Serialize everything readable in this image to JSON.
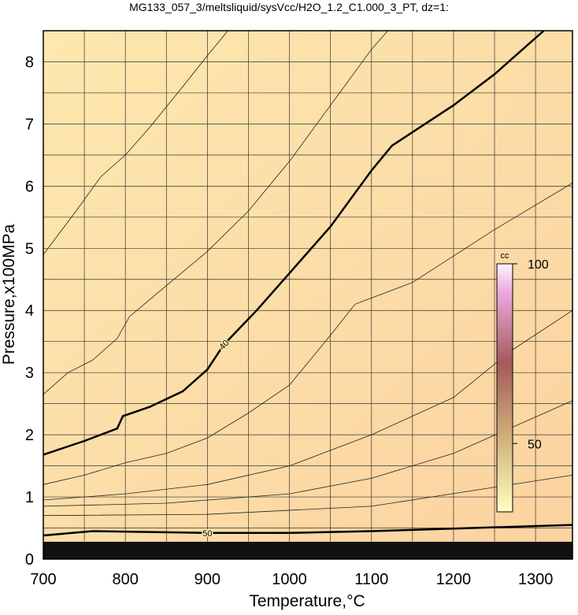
{
  "chart_data": {
    "type": "contour",
    "title": "MG133_057_3/meltsliquid/sysVcc/H2O_1.2_C1.000_3_PT, dz=1:",
    "xlabel": "Temperature,°C",
    "ylabel": "Pressure,x100MPa",
    "xlim": [
      700,
      1345
    ],
    "ylim": [
      0,
      8.5
    ],
    "xticks": [
      700,
      800,
      900,
      1000,
      1100,
      1200,
      1300
    ],
    "yticks": [
      0,
      1,
      2,
      3,
      4,
      5,
      6,
      7,
      8
    ],
    "xminorticks": [
      750,
      850,
      950,
      1050,
      1150,
      1250
    ],
    "yminorticks": [
      0.5,
      1.5,
      2.5,
      3.5,
      4.5,
      5.5,
      6.5,
      7.5
    ],
    "grid": true,
    "contours": [
      {
        "level": 40,
        "bold": true,
        "x": [
          700,
          750,
          790,
          797,
          830,
          870,
          900,
          920,
          960,
          1000,
          1050,
          1100,
          1125,
          1200,
          1250,
          1310
        ],
        "y": [
          1.68,
          1.9,
          2.1,
          2.3,
          2.45,
          2.7,
          3.05,
          3.45,
          4.0,
          4.6,
          5.35,
          6.25,
          6.65,
          7.3,
          7.8,
          8.5
        ]
      },
      {
        "level": 50,
        "bold": true,
        "x": [
          700,
          760,
          900,
          1000,
          1100,
          1345
        ],
        "y": [
          0.38,
          0.45,
          0.42,
          0.42,
          0.45,
          0.55
        ]
      }
    ],
    "lines": [
      {
        "x": [
          700,
          740,
          770,
          800,
          830,
          870,
          900,
          925
        ],
        "y": [
          4.9,
          5.6,
          6.15,
          6.5,
          6.95,
          7.6,
          8.1,
          8.5
        ]
      },
      {
        "x": [
          700,
          730,
          760,
          790,
          805,
          850,
          900,
          950,
          1000,
          1050,
          1100,
          1120
        ],
        "y": [
          2.65,
          3.0,
          3.2,
          3.55,
          3.9,
          4.4,
          4.95,
          5.6,
          6.4,
          7.3,
          8.2,
          8.5
        ]
      },
      {
        "x": [
          700,
          750,
          800,
          850,
          900,
          950,
          1000,
          1050,
          1080,
          1150,
          1250,
          1345
        ],
        "y": [
          1.2,
          1.35,
          1.55,
          1.7,
          1.95,
          2.35,
          2.8,
          3.6,
          4.1,
          4.45,
          5.3,
          6.05
        ]
      },
      {
        "x": [
          700,
          800,
          900,
          1000,
          1100,
          1200,
          1270,
          1345
        ],
        "y": [
          0.95,
          1.05,
          1.2,
          1.5,
          2.0,
          2.6,
          3.35,
          4.0
        ]
      },
      {
        "x": [
          700,
          850,
          1000,
          1100,
          1200,
          1345
        ],
        "y": [
          0.85,
          0.9,
          1.05,
          1.3,
          1.7,
          2.55
        ]
      },
      {
        "x": [
          700,
          900,
          1100,
          1345
        ],
        "y": [
          0.7,
          0.72,
          0.85,
          1.35
        ]
      }
    ],
    "colorbar": {
      "label": "cc",
      "lim": [
        31,
        100
      ],
      "ticks": [
        50,
        100
      ]
    }
  }
}
